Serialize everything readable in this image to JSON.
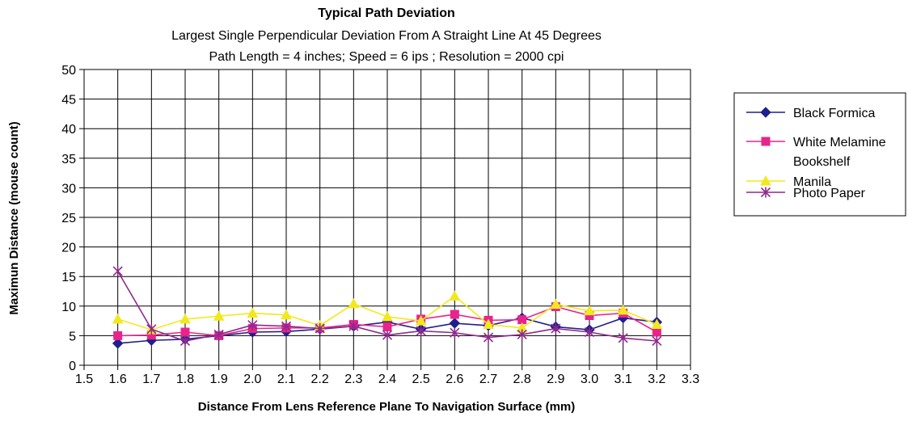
{
  "chart_data": {
    "type": "line",
    "title": "Typical Path Deviation",
    "subtitle_lines": [
      "Largest Single Perpendicular Deviation From A Straight Line At 45 Degrees",
      "Path Length = 4 inches; Speed = 6 ips ; Resolution = 2000 cpi"
    ],
    "xlabel": "Distance From Lens Reference Plane To Navigation Surface (mm)",
    "ylabel": "Maximun Distance (mouse count)",
    "xlim": [
      1.5,
      3.3
    ],
    "ylim": [
      0,
      50
    ],
    "x_ticks": [
      "1.5",
      "1.6",
      "1.7",
      "1.8",
      "1.9",
      "2.0",
      "2.1",
      "2.2",
      "2.3",
      "2.4",
      "2.5",
      "2.6",
      "2.7",
      "2.8",
      "2.9",
      "3.0",
      "3.1",
      "3.2",
      "3.3"
    ],
    "y_ticks": [
      "0",
      "5",
      "10",
      "15",
      "20",
      "25",
      "30",
      "35",
      "40",
      "45",
      "50"
    ],
    "grid": true,
    "legend_position": "right",
    "x": [
      1.6,
      1.7,
      1.8,
      1.9,
      2.0,
      2.1,
      2.2,
      2.3,
      2.4,
      2.5,
      2.6,
      2.7,
      2.8,
      2.9,
      3.0,
      3.1,
      3.2
    ],
    "series": [
      {
        "name": "Black Formica",
        "color": "#1F1F8F",
        "marker": "diamond",
        "values": [
          3.7,
          4.2,
          4.4,
          5.0,
          5.6,
          5.7,
          6.1,
          6.6,
          7.3,
          6.1,
          7.1,
          6.7,
          8.0,
          6.5,
          6.0,
          8.0,
          7.3
        ]
      },
      {
        "name": "White Melamine Bookshelf",
        "legend_lines": [
          "White Melamine",
          "Bookshelf"
        ],
        "color": "#E8248C",
        "marker": "square",
        "values": [
          5.0,
          5.1,
          5.6,
          5.0,
          6.2,
          6.3,
          6.3,
          6.9,
          6.5,
          7.8,
          8.6,
          7.6,
          7.7,
          9.9,
          8.4,
          8.8,
          5.6
        ]
      },
      {
        "name": "Manila",
        "color": "#F2E81E",
        "marker": "triangle",
        "values": [
          7.8,
          6.0,
          7.8,
          8.3,
          8.8,
          8.5,
          6.7,
          10.4,
          8.2,
          7.5,
          11.7,
          6.9,
          6.3,
          10.3,
          9.2,
          9.3,
          6.9
        ]
      },
      {
        "name": "Photo Paper",
        "color": "#8E2A8C",
        "marker": "asterisk",
        "values": [
          15.9,
          6.1,
          4.1,
          5.2,
          6.8,
          6.6,
          6.2,
          6.6,
          5.1,
          5.8,
          5.5,
          4.7,
          5.2,
          6.2,
          5.6,
          4.6,
          4.1
        ]
      }
    ]
  }
}
